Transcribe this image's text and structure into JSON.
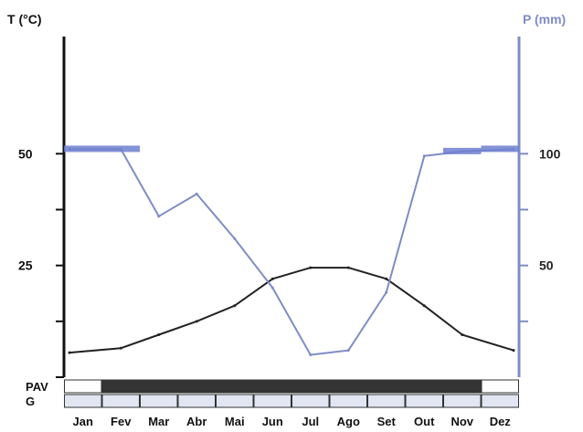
{
  "chart_data": {
    "type": "line",
    "left_axis_label": "T (°C)",
    "right_axis_label": "P (mm)",
    "left_ticks": [
      {
        "value": 25,
        "label": "25"
      },
      {
        "value": 50,
        "label": "50"
      }
    ],
    "left_minor_ticks": [
      0,
      12.5,
      37.5
    ],
    "right_ticks": [
      {
        "value": 50,
        "label": "50"
      },
      {
        "value": 100,
        "label": "100"
      }
    ],
    "right_minor_ticks": [
      25,
      75
    ],
    "left_range": [
      0,
      75
    ],
    "right_range": [
      0,
      150
    ],
    "categories": [
      "Jan",
      "Fev",
      "Mar",
      "Abr",
      "Mai",
      "Jun",
      "Jul",
      "Ago",
      "Set",
      "Out",
      "Nov",
      "Dez"
    ],
    "series": [
      {
        "axis": "left",
        "color": "#222222",
        "values": [
          5.5,
          6.5,
          9.5,
          12.5,
          16,
          22,
          24.5,
          24.5,
          22,
          16,
          9.5,
          6
        ]
      },
      {
        "axis": "right",
        "color": "#7f8cc6",
        "values": [
          102,
          102,
          72,
          82,
          62,
          40,
          10,
          12,
          38,
          99,
          101,
          102
        ]
      }
    ],
    "bottom_rows": [
      {
        "label": "PAV",
        "filled": [
          false,
          true,
          true,
          true,
          true,
          true,
          true,
          true,
          true,
          true,
          true,
          false
        ]
      },
      {
        "label": "G",
        "filled": [
          false,
          false,
          false,
          false,
          false,
          false,
          false,
          false,
          false,
          false,
          false,
          false
        ]
      }
    ],
    "colors": {
      "axis_left": "#111111",
      "axis_right": "#7f8cc6",
      "band_fill": "#333333",
      "row_g_fill": "#e2e6f2",
      "precip_cap": "#6f7fd0"
    }
  }
}
